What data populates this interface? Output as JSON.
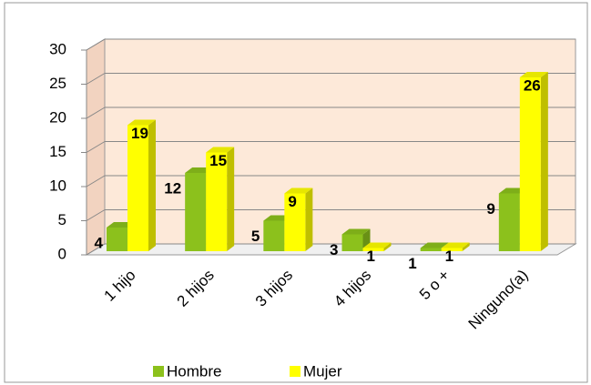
{
  "chart_data": {
    "type": "bar3d",
    "categories": [
      "1 hijo",
      "2 hijos",
      "3 hijos",
      "4 hijos",
      "5 o +",
      "Ninguno(a)"
    ],
    "series": [
      {
        "name": "Hombre",
        "color": "#8cc11c",
        "values": [
          4,
          12,
          5,
          3,
          1,
          9
        ]
      },
      {
        "name": "Mujer",
        "color": "#ffff00",
        "values": [
          19,
          15,
          9,
          1,
          1,
          26
        ]
      }
    ],
    "ylim": [
      0,
      30
    ],
    "yticks": [
      0,
      5,
      10,
      15,
      20,
      25,
      30
    ],
    "grid": true,
    "legend": "bottom"
  }
}
